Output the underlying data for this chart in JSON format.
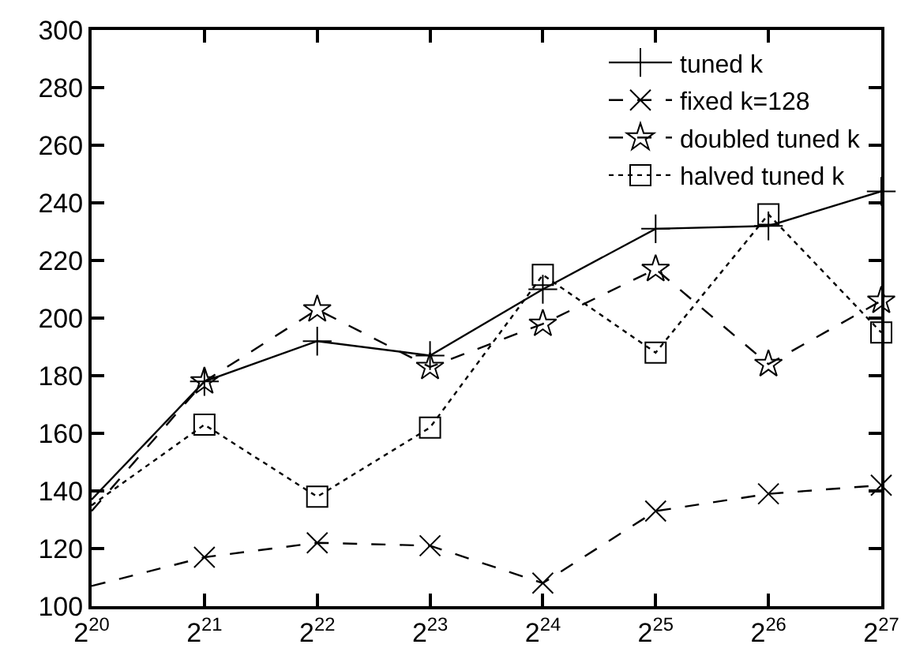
{
  "chart_data": {
    "type": "line",
    "x": [
      1048576,
      2097152,
      4194304,
      8388608,
      16777216,
      33554432,
      67108864,
      134217728
    ],
    "series": [
      {
        "name": "tuned k",
        "color": "#000000",
        "marker": "cross",
        "line_style": "solid",
        "values": [
          137,
          178,
          192,
          187,
          210,
          231,
          232,
          244
        ]
      },
      {
        "name": "fixed k=128",
        "color": "#000000",
        "marker": "x",
        "line_style": "dashed",
        "values": [
          107,
          117,
          122,
          121,
          108,
          133,
          139,
          142
        ]
      },
      {
        "name": "doubled tuned k",
        "color": "#000000",
        "marker": "star",
        "line_style": "dashed",
        "values": [
          133,
          178,
          203,
          183,
          198,
          217,
          184,
          206
        ]
      },
      {
        "name": "halved tuned k",
        "color": "#000000",
        "marker": "square",
        "line_style": "dotted",
        "values": [
          135,
          163,
          138,
          162,
          215,
          188,
          236,
          195
        ]
      }
    ],
    "log": "x",
    "xlim": [
      1048576,
      134217728
    ],
    "xticks": [
      {
        "value": 1048576,
        "label": "2$^{20}$"
      },
      {
        "value": 2097152,
        "label": "2$^{21}$"
      },
      {
        "value": 4194304,
        "label": "2$^{22}$"
      },
      {
        "value": 8388608,
        "label": "2$^{23}$"
      },
      {
        "value": 16777216,
        "label": "2$^{24}$"
      },
      {
        "value": 33554432,
        "label": "2$^{25}$"
      },
      {
        "value": 67108864,
        "label": "2$^{26}$"
      },
      {
        "value": 134217728,
        "label": "2$^{27}$"
      }
    ],
    "ylim": [
      100,
      300
    ],
    "yticks": [
      100,
      120,
      140,
      160,
      180,
      200,
      220,
      240,
      260,
      280,
      300
    ],
    "legend": "top right"
  }
}
